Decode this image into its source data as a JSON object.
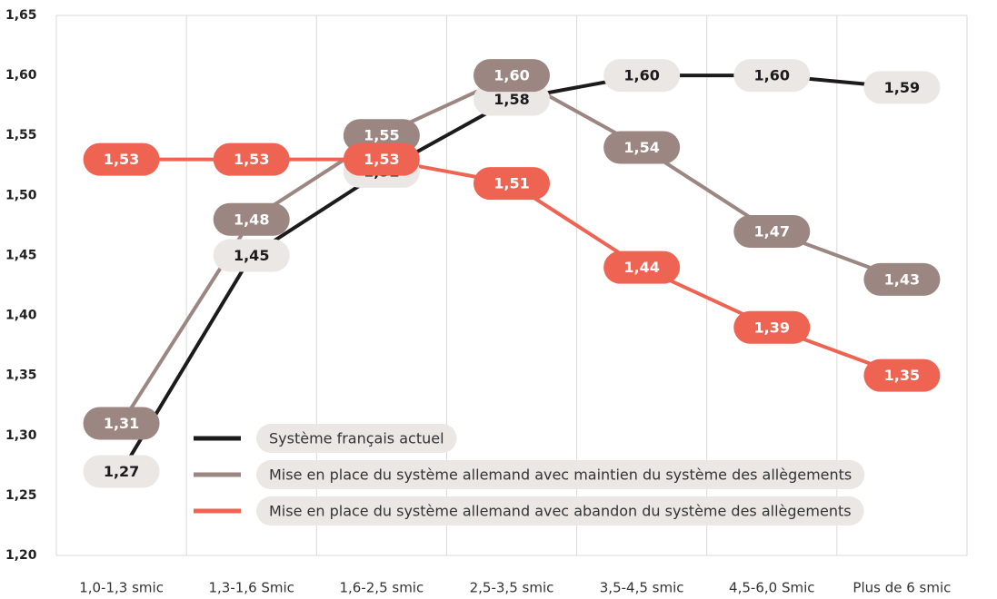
{
  "chart_data": {
    "type": "line",
    "categories": [
      "1,0-1,3 smic",
      "1,3-1,6 Smic",
      "1,6-2,5 smic",
      "2,5-3,5 smic",
      "3,5-4,5 smic",
      "4,5-6,0 Smic",
      "Plus de 6 smic"
    ],
    "series": [
      {
        "name": "Système français actuel",
        "color": "#1c1a1a",
        "label_bg": "#ebe7e5",
        "label_color": "#1c1a1a",
        "values": [
          1.27,
          1.45,
          1.52,
          1.58,
          1.6,
          1.6,
          1.59
        ],
        "value_labels": [
          "1,27",
          "1,45",
          "1,52",
          "1,58",
          "1,60",
          "1,60",
          "1,59"
        ]
      },
      {
        "name": "Mise en place du système allemand avec maintien du système des allègements",
        "color": "#9c8681",
        "label_bg": "#9c8681",
        "label_color": "#ffffff",
        "values": [
          1.31,
          1.48,
          1.55,
          1.6,
          1.54,
          1.47,
          1.43
        ],
        "value_labels": [
          "1,31",
          "1,48",
          "1,55",
          "1,60",
          "1,54",
          "1,47",
          "1,43"
        ]
      },
      {
        "name": "Mise en place du système allemand avec abandon du système des allègements",
        "color": "#ee6352",
        "label_bg": "#ee6352",
        "label_color": "#ffffff",
        "values": [
          1.53,
          1.53,
          1.53,
          1.51,
          1.44,
          1.39,
          1.35
        ],
        "value_labels": [
          "1,53",
          "1,53",
          "1,53",
          "1,51",
          "1,44",
          "1,39",
          "1,35"
        ]
      }
    ],
    "ylim": [
      1.2,
      1.65
    ],
    "yticks": [
      {
        "value": 1.2,
        "label": "1,20"
      },
      {
        "value": 1.25,
        "label": "1,25"
      },
      {
        "value": 1.3,
        "label": "1,30"
      },
      {
        "value": 1.35,
        "label": "1,35"
      },
      {
        "value": 1.4,
        "label": "1,40"
      },
      {
        "value": 1.45,
        "label": "1,45"
      },
      {
        "value": 1.5,
        "label": "1,50"
      },
      {
        "value": 1.55,
        "label": "1,55"
      },
      {
        "value": 1.6,
        "label": "1,60"
      },
      {
        "value": 1.65,
        "label": "1,65"
      }
    ],
    "legend": "lower left"
  }
}
